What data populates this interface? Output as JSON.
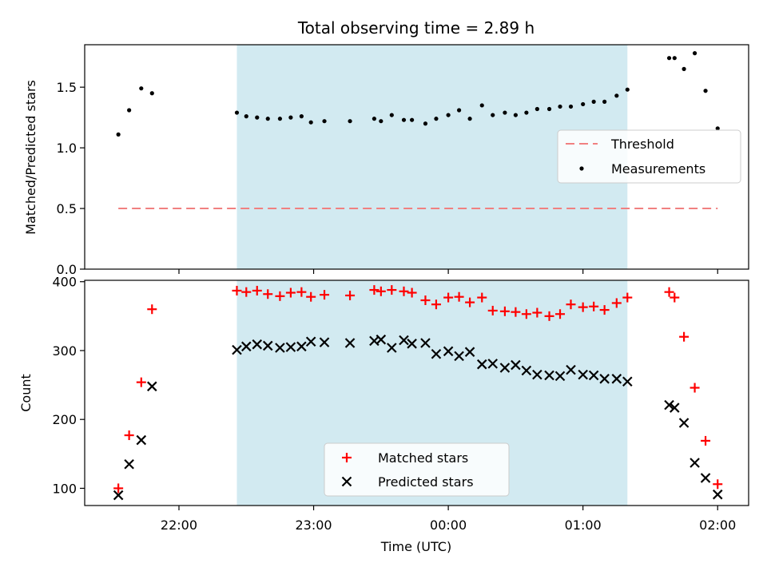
{
  "title": "Total observing time = 2.89 h",
  "xlabel": "Time (UTC)",
  "colors": {
    "shade": "#add8e6",
    "threshold": "#f08080",
    "matched": "#ff0000",
    "predicted": "#000000",
    "measurement": "#000000"
  },
  "chart_data": [
    {
      "type": "scatter",
      "ylabel": "Matched/Predicted stars",
      "x_range_hours": [
        21.3,
        26.23
      ],
      "ylim": [
        0,
        1.85
      ],
      "yticks": [
        0.0,
        0.5,
        1.0,
        1.5
      ],
      "ytick_labels": [
        "0.0",
        "0.5",
        "1.0",
        "1.5"
      ],
      "shaded_span_hours": [
        22.43,
        25.33
      ],
      "legend": {
        "placement": "center-right",
        "entries": [
          "Threshold",
          "Measurements"
        ]
      },
      "threshold": {
        "name": "Threshold",
        "value": 0.5,
        "x_from": 21.55,
        "x_to": 26.0
      },
      "series": [
        {
          "name": "Measurements",
          "points": [
            [
              21.55,
              1.11
            ],
            [
              21.63,
              1.31
            ],
            [
              21.72,
              1.49
            ],
            [
              21.8,
              1.45
            ],
            [
              22.43,
              1.29
            ],
            [
              22.5,
              1.26
            ],
            [
              22.58,
              1.25
            ],
            [
              22.66,
              1.24
            ],
            [
              22.75,
              1.24
            ],
            [
              22.83,
              1.25
            ],
            [
              22.91,
              1.26
            ],
            [
              22.98,
              1.21
            ],
            [
              23.08,
              1.22
            ],
            [
              23.27,
              1.22
            ],
            [
              23.45,
              1.24
            ],
            [
              23.5,
              1.22
            ],
            [
              23.58,
              1.27
            ],
            [
              23.67,
              1.23
            ],
            [
              23.73,
              1.23
            ],
            [
              23.83,
              1.2
            ],
            [
              23.91,
              1.24
            ],
            [
              24.0,
              1.27
            ],
            [
              24.08,
              1.31
            ],
            [
              24.16,
              1.24
            ],
            [
              24.25,
              1.35
            ],
            [
              24.33,
              1.27
            ],
            [
              24.42,
              1.29
            ],
            [
              24.5,
              1.27
            ],
            [
              24.58,
              1.29
            ],
            [
              24.66,
              1.32
            ],
            [
              24.75,
              1.32
            ],
            [
              24.83,
              1.34
            ],
            [
              24.91,
              1.34
            ],
            [
              25.0,
              1.36
            ],
            [
              25.08,
              1.38
            ],
            [
              25.16,
              1.38
            ],
            [
              25.25,
              1.43
            ],
            [
              25.33,
              1.48
            ],
            [
              25.64,
              1.74
            ],
            [
              25.68,
              1.74
            ],
            [
              25.75,
              1.65
            ],
            [
              25.83,
              1.78
            ],
            [
              25.91,
              1.47
            ],
            [
              26.0,
              1.16
            ]
          ]
        }
      ]
    },
    {
      "type": "scatter",
      "ylabel": "Count",
      "xlabel": "Time (UTC)",
      "x_range_hours": [
        21.3,
        26.23
      ],
      "ylim": [
        75,
        402
      ],
      "yticks": [
        100,
        200,
        300,
        400
      ],
      "ytick_labels": [
        "100",
        "200",
        "300",
        "400"
      ],
      "xticks_hours": [
        22,
        23,
        24,
        25,
        26
      ],
      "xtick_labels": [
        "22:00",
        "23:00",
        "00:00",
        "01:00",
        "02:00"
      ],
      "shaded_span_hours": [
        22.43,
        25.33
      ],
      "legend": {
        "placement": "lower-center",
        "entries": [
          "Matched stars",
          "Predicted stars"
        ]
      },
      "series": [
        {
          "name": "Matched stars",
          "marker": "plus",
          "points": [
            [
              21.55,
              100
            ],
            [
              21.63,
              177
            ],
            [
              21.72,
              254
            ],
            [
              21.8,
              360
            ],
            [
              22.43,
              387
            ],
            [
              22.5,
              385
            ],
            [
              22.58,
              387
            ],
            [
              22.66,
              382
            ],
            [
              22.75,
              379
            ],
            [
              22.83,
              384
            ],
            [
              22.91,
              385
            ],
            [
              22.98,
              378
            ],
            [
              23.08,
              381
            ],
            [
              23.27,
              380
            ],
            [
              23.45,
              388
            ],
            [
              23.5,
              386
            ],
            [
              23.58,
              388
            ],
            [
              23.67,
              386
            ],
            [
              23.73,
              384
            ],
            [
              23.83,
              373
            ],
            [
              23.91,
              367
            ],
            [
              24.0,
              377
            ],
            [
              24.08,
              378
            ],
            [
              24.16,
              370
            ],
            [
              24.25,
              377
            ],
            [
              24.33,
              358
            ],
            [
              24.42,
              357
            ],
            [
              24.5,
              356
            ],
            [
              24.58,
              353
            ],
            [
              24.66,
              355
            ],
            [
              24.75,
              350
            ],
            [
              24.83,
              353
            ],
            [
              24.91,
              367
            ],
            [
              25.0,
              363
            ],
            [
              25.08,
              364
            ],
            [
              25.16,
              359
            ],
            [
              25.25,
              369
            ],
            [
              25.33,
              377
            ],
            [
              25.64,
              385
            ],
            [
              25.68,
              377
            ],
            [
              25.75,
              320
            ],
            [
              25.83,
              246
            ],
            [
              25.91,
              169
            ],
            [
              26.0,
              106
            ]
          ]
        },
        {
          "name": "Predicted stars",
          "marker": "x",
          "points": [
            [
              21.55,
              90
            ],
            [
              21.63,
              135
            ],
            [
              21.72,
              170
            ],
            [
              21.8,
              248
            ],
            [
              22.43,
              301
            ],
            [
              22.5,
              306
            ],
            [
              22.58,
              309
            ],
            [
              22.66,
              307
            ],
            [
              22.75,
              304
            ],
            [
              22.83,
              305
            ],
            [
              22.91,
              306
            ],
            [
              22.98,
              313
            ],
            [
              23.08,
              312
            ],
            [
              23.27,
              311
            ],
            [
              23.45,
              314
            ],
            [
              23.5,
              316
            ],
            [
              23.58,
              304
            ],
            [
              23.67,
              315
            ],
            [
              23.73,
              310
            ],
            [
              23.83,
              311
            ],
            [
              23.91,
              295
            ],
            [
              24.0,
              299
            ],
            [
              24.08,
              292
            ],
            [
              24.16,
              298
            ],
            [
              24.25,
              280
            ],
            [
              24.33,
              281
            ],
            [
              24.42,
              275
            ],
            [
              24.5,
              279
            ],
            [
              24.58,
              271
            ],
            [
              24.66,
              265
            ],
            [
              24.75,
              264
            ],
            [
              24.83,
              263
            ],
            [
              24.91,
              272
            ],
            [
              25.0,
              265
            ],
            [
              25.08,
              264
            ],
            [
              25.16,
              259
            ],
            [
              25.25,
              259
            ],
            [
              25.33,
              255
            ],
            [
              25.64,
              221
            ],
            [
              25.68,
              217
            ],
            [
              25.75,
              195
            ],
            [
              25.83,
              137
            ],
            [
              25.91,
              115
            ],
            [
              26.0,
              91
            ]
          ]
        }
      ]
    }
  ]
}
